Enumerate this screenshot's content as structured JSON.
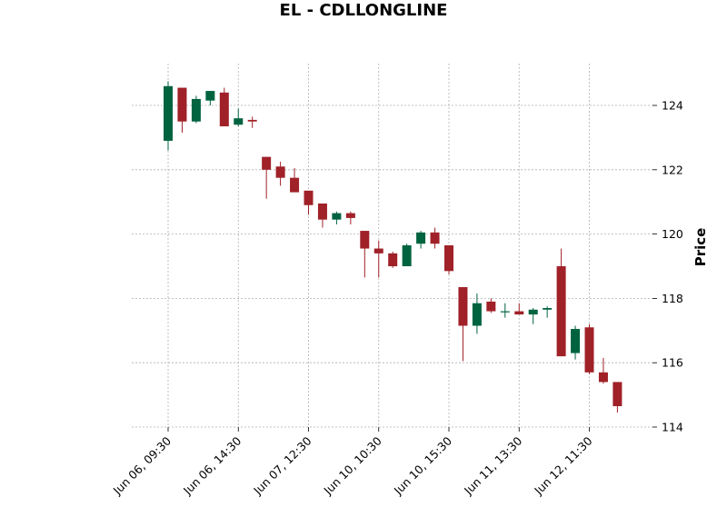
{
  "chart_data": {
    "type": "candlestick",
    "title": "EL - CDLLONGLINE",
    "xlabel": "",
    "ylabel": "Price",
    "ylim": [
      114,
      125.3
    ],
    "yticks": [
      114,
      116,
      118,
      120,
      122,
      124
    ],
    "xticks": [
      {
        "index": 0,
        "label": "Jun 06, 09:30"
      },
      {
        "index": 5,
        "label": "Jun 06, 14:30"
      },
      {
        "index": 10,
        "label": "Jun 07, 12:30"
      },
      {
        "index": 15,
        "label": "Jun 10, 10:30"
      },
      {
        "index": 20,
        "label": "Jun 10, 15:30"
      },
      {
        "index": 25,
        "label": "Jun 11, 13:30"
      },
      {
        "index": 30,
        "label": "Jun 12, 11:30"
      }
    ],
    "grid": true,
    "legend": "none",
    "colors": {
      "up": "#006340",
      "down": "#a02128",
      "grid": "#b0b0b0"
    },
    "candles": [
      {
        "o": 122.9,
        "h": 124.75,
        "l": 122.6,
        "c": 124.6
      },
      {
        "o": 124.55,
        "h": 124.55,
        "l": 123.15,
        "c": 123.5
      },
      {
        "o": 123.5,
        "h": 124.3,
        "l": 123.45,
        "c": 124.2
      },
      {
        "o": 124.15,
        "h": 124.45,
        "l": 124.0,
        "c": 124.45
      },
      {
        "o": 124.4,
        "h": 124.55,
        "l": 123.35,
        "c": 123.35
      },
      {
        "o": 123.4,
        "h": 123.9,
        "l": 123.35,
        "c": 123.6
      },
      {
        "o": 123.55,
        "h": 123.65,
        "l": 123.3,
        "c": 123.5
      },
      {
        "o": 122.4,
        "h": 122.4,
        "l": 121.1,
        "c": 122.0
      },
      {
        "o": 122.1,
        "h": 122.25,
        "l": 121.5,
        "c": 121.75
      },
      {
        "o": 121.75,
        "h": 122.05,
        "l": 121.3,
        "c": 121.3
      },
      {
        "o": 121.35,
        "h": 121.35,
        "l": 120.6,
        "c": 120.9
      },
      {
        "o": 120.95,
        "h": 120.95,
        "l": 120.2,
        "c": 120.45
      },
      {
        "o": 120.45,
        "h": 120.7,
        "l": 120.3,
        "c": 120.65
      },
      {
        "o": 120.65,
        "h": 120.7,
        "l": 120.3,
        "c": 120.5
      },
      {
        "o": 120.1,
        "h": 120.1,
        "l": 118.65,
        "c": 119.55
      },
      {
        "o": 119.55,
        "h": 119.8,
        "l": 118.65,
        "c": 119.4
      },
      {
        "o": 119.4,
        "h": 119.45,
        "l": 118.95,
        "c": 119.0
      },
      {
        "o": 119.0,
        "h": 119.7,
        "l": 119.0,
        "c": 119.65
      },
      {
        "o": 119.7,
        "h": 120.1,
        "l": 119.55,
        "c": 120.05
      },
      {
        "o": 120.05,
        "h": 120.2,
        "l": 119.55,
        "c": 119.7
      },
      {
        "o": 119.65,
        "h": 119.65,
        "l": 118.75,
        "c": 118.85
      },
      {
        "o": 118.35,
        "h": 118.35,
        "l": 116.05,
        "c": 117.15
      },
      {
        "o": 117.15,
        "h": 118.15,
        "l": 116.9,
        "c": 117.85
      },
      {
        "o": 117.9,
        "h": 118.0,
        "l": 117.55,
        "c": 117.6
      },
      {
        "o": 117.6,
        "h": 117.85,
        "l": 117.4,
        "c": 117.6
      },
      {
        "o": 117.6,
        "h": 117.85,
        "l": 117.5,
        "c": 117.5
      },
      {
        "o": 117.5,
        "h": 117.7,
        "l": 117.2,
        "c": 117.65
      },
      {
        "o": 117.65,
        "h": 117.75,
        "l": 117.4,
        "c": 117.7
      },
      {
        "o": 119.0,
        "h": 119.55,
        "l": 116.2,
        "c": 116.2
      },
      {
        "o": 116.3,
        "h": 117.15,
        "l": 116.1,
        "c": 117.05
      },
      {
        "o": 117.1,
        "h": 117.2,
        "l": 115.65,
        "c": 115.7
      },
      {
        "o": 115.7,
        "h": 116.15,
        "l": 115.35,
        "c": 115.4
      },
      {
        "o": 115.4,
        "h": 115.4,
        "l": 114.45,
        "c": 114.65
      }
    ]
  }
}
